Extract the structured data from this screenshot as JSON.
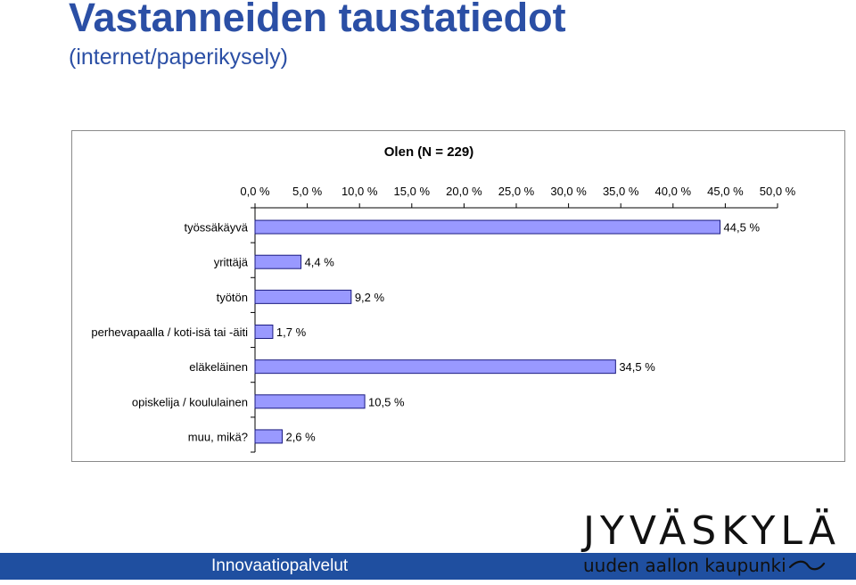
{
  "page": {
    "title": "Vastanneiden taustatiedot",
    "subtitle": "(internet/paperikysely)",
    "footer_text": "Innovaatiopalvelut",
    "logo_main": "JYVÄSKYLÄ",
    "logo_sub": "uuden aallon kaupunki",
    "colors": {
      "title": "#2b4fa5",
      "footer": "#1f4fa0",
      "bar_fill": "#9999ff",
      "bar_stroke": "#1a1a80"
    }
  },
  "chart_data": {
    "type": "bar",
    "orientation": "horizontal",
    "title": "Olen (N = 229)",
    "categories": [
      "työssäkäyvä",
      "yrittäjä",
      "työtön",
      "perhevapaalla / koti-isä tai -äiti",
      "eläkeläinen",
      "opiskelija / koululainen",
      "muu, mikä?"
    ],
    "values": [
      44.5,
      4.4,
      9.2,
      1.7,
      34.5,
      10.5,
      2.6
    ],
    "value_labels": [
      "44,5 %",
      "4,4 %",
      "9,2 %",
      "1,7 %",
      "34,5 %",
      "10,5 %",
      "2,6 %"
    ],
    "xlim": [
      0,
      50
    ],
    "tick_labels": [
      "0,0 %",
      "5,0 %",
      "10,0 %",
      "15,0 %",
      "20,0 %",
      "25,0 %",
      "30,0 %",
      "35,0 %",
      "40,0 %",
      "45,0 %",
      "50,0 %"
    ],
    "axis_position": "top",
    "grid": false,
    "legend": "none"
  }
}
